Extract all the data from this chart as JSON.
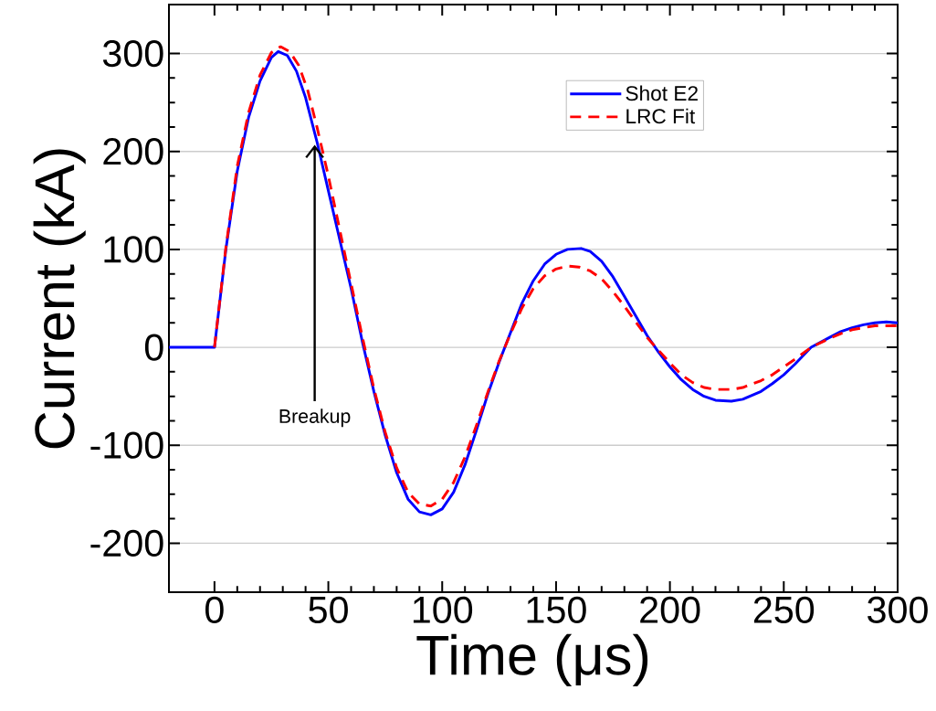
{
  "chart_data": {
    "type": "line",
    "xlabel": "Time (μs)",
    "ylabel": "Current (kA)",
    "xlim": [
      -20,
      300
    ],
    "ylim": [
      -250,
      350
    ],
    "xticks": [
      0,
      50,
      100,
      150,
      200,
      250,
      300
    ],
    "yticks": [
      -200,
      -100,
      0,
      100,
      200,
      300
    ],
    "grid": "y",
    "legend": "top right",
    "marker": "none",
    "annotations": [
      {
        "text": "Breakup",
        "x": 44,
        "y": 205
      }
    ],
    "series": [
      {
        "name": "Shot E2",
        "color": "#0000ff",
        "line_style": "solid",
        "x": [
          -20,
          0,
          5,
          10,
          15,
          20,
          25,
          28,
          32,
          36,
          40,
          45,
          50,
          55,
          60,
          65,
          70,
          75,
          80,
          85,
          90,
          95,
          100,
          105,
          110,
          115,
          120,
          125,
          130,
          135,
          140,
          145,
          150,
          155,
          161,
          165,
          170,
          175,
          180,
          185,
          190,
          195,
          200,
          205,
          210,
          215,
          220,
          227,
          232,
          240,
          245,
          250,
          255,
          262,
          270,
          275,
          280,
          285,
          290,
          295,
          300
        ],
        "values": [
          0,
          0,
          100,
          180,
          235,
          272,
          296,
          302,
          298,
          282,
          255,
          210,
          160,
          110,
          60,
          5,
          -45,
          -90,
          -128,
          -155,
          -168,
          -171,
          -165,
          -148,
          -120,
          -85,
          -48,
          -15,
          15,
          45,
          68,
          85,
          95,
          100,
          101,
          98,
          88,
          72,
          52,
          32,
          12,
          -5,
          -20,
          -33,
          -43,
          -50,
          -54,
          -55,
          -53,
          -45,
          -37,
          -28,
          -17,
          0,
          10,
          16,
          20,
          23,
          25,
          26,
          25
        ]
      },
      {
        "name": "LRC Fit",
        "color": "#ff0000",
        "line_style": "dashed",
        "x": [
          0,
          5,
          10,
          15,
          20,
          25,
          29,
          33,
          37,
          41,
          45,
          50,
          55,
          60,
          65,
          70,
          75,
          80,
          85,
          90,
          95,
          100,
          105,
          110,
          115,
          120,
          125,
          130,
          135,
          140,
          145,
          150,
          155,
          160,
          165,
          170,
          175,
          180,
          185,
          190,
          195,
          200,
          205,
          210,
          215,
          220,
          227,
          232,
          240,
          245,
          250,
          255,
          262,
          270,
          275,
          280,
          285,
          290,
          295,
          300
        ],
        "values": [
          0,
          102,
          185,
          240,
          278,
          301,
          307,
          302,
          288,
          262,
          225,
          175,
          120,
          65,
          10,
          -42,
          -87,
          -123,
          -148,
          -160,
          -162,
          -155,
          -138,
          -112,
          -80,
          -46,
          -14,
          14,
          40,
          60,
          73,
          80,
          83,
          82,
          78,
          70,
          57,
          42,
          26,
          10,
          -3,
          -16,
          -28,
          -36,
          -41,
          -43,
          -43,
          -41,
          -34,
          -28,
          -20,
          -12,
          0,
          9,
          14,
          18,
          20,
          22,
          22,
          22
        ]
      }
    ]
  }
}
